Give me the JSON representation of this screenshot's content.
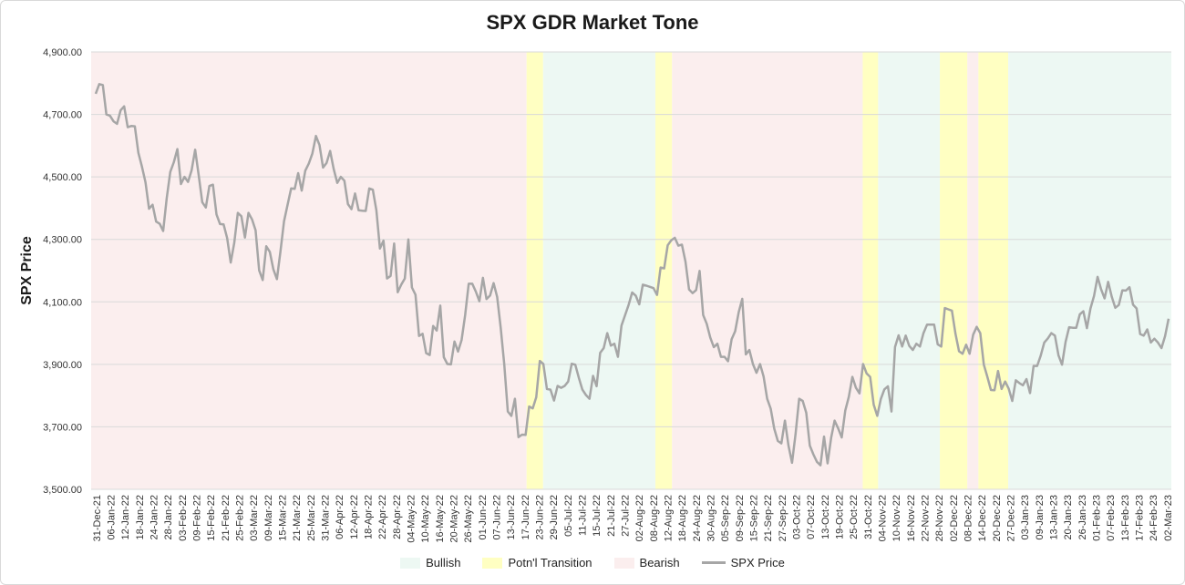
{
  "chart_data": {
    "type": "line",
    "title": "SPX GDR Market Tone",
    "ylabel": "SPX Price",
    "xlabel": "",
    "ylim": [
      3500,
      4900
    ],
    "yticks": [
      "3,500.00",
      "3,700.00",
      "3,900.00",
      "4,100.00",
      "4,300.00",
      "4,500.00",
      "4,700.00",
      "4,900.00"
    ],
    "ytick_values": [
      3500,
      3700,
      3900,
      4100,
      4300,
      4500,
      4700,
      4900
    ],
    "xticks": [
      "31-Dec-21",
      "06-Jan-22",
      "12-Jan-22",
      "18-Jan-22",
      "24-Jan-22",
      "28-Jan-22",
      "03-Feb-22",
      "09-Feb-22",
      "15-Feb-22",
      "21-Feb-22",
      "25-Feb-22",
      "03-Mar-22",
      "09-Mar-22",
      "15-Mar-22",
      "21-Mar-22",
      "25-Mar-22",
      "31-Mar-22",
      "06-Apr-22",
      "12-Apr-22",
      "18-Apr-22",
      "22-Apr-22",
      "28-Apr-22",
      "04-May-22",
      "10-May-22",
      "16-May-22",
      "20-May-22",
      "26-May-22",
      "01-Jun-22",
      "07-Jun-22",
      "13-Jun-22",
      "17-Jun-22",
      "23-Jun-22",
      "29-Jun-22",
      "05-Jul-22",
      "11-Jul-22",
      "15-Jul-22",
      "21-Jul-22",
      "27-Jul-22",
      "02-Aug-22",
      "08-Aug-22",
      "12-Aug-22",
      "18-Aug-22",
      "24-Aug-22",
      "30-Aug-22",
      "05-Sep-22",
      "09-Sep-22",
      "15-Sep-22",
      "21-Sep-22",
      "27-Sep-22",
      "03-Oct-22",
      "07-Oct-22",
      "13-Oct-22",
      "19-Oct-22",
      "25-Oct-22",
      "31-Oct-22",
      "04-Nov-22",
      "10-Nov-22",
      "16-Nov-22",
      "22-Nov-22",
      "28-Nov-22",
      "02-Dec-22",
      "08-Dec-22",
      "14-Dec-22",
      "20-Dec-22",
      "27-Dec-22",
      "03-Jan-23",
      "09-Jan-23",
      "13-Jan-23",
      "20-Jan-23",
      "26-Jan-23",
      "01-Feb-23",
      "07-Feb-23",
      "13-Feb-23",
      "17-Feb-23",
      "24-Feb-23",
      "02-Mar-23"
    ],
    "series": [
      {
        "name": "SPX Price",
        "color": "#a6a6a6",
        "values": [
          4766,
          4797,
          4794,
          4700,
          4696,
          4678,
          4670,
          4713,
          4726,
          4659,
          4663,
          4662,
          4577,
          4533,
          4483,
          4398,
          4411,
          4357,
          4350,
          4327,
          4432,
          4516,
          4547,
          4589,
          4477,
          4500,
          4484,
          4521,
          4587,
          4505,
          4419,
          4402,
          4471,
          4475,
          4380,
          4349,
          4348,
          4304,
          4226,
          4289,
          4385,
          4374,
          4306,
          4385,
          4364,
          4329,
          4201,
          4170,
          4278,
          4260,
          4204,
          4173,
          4262,
          4358,
          4411,
          4463,
          4462,
          4512,
          4456,
          4520,
          4543,
          4575,
          4631,
          4602,
          4530,
          4545,
          4583,
          4525,
          4481,
          4500,
          4488,
          4413,
          4397,
          4447,
          4393,
          4392,
          4391,
          4463,
          4459,
          4393,
          4271,
          4296,
          4175,
          4183,
          4287,
          4131,
          4155,
          4175,
          4300,
          4146,
          4123,
          3991,
          3998,
          3936,
          3930,
          4023,
          4008,
          4088,
          3923,
          3901,
          3900,
          3973,
          3941,
          3978,
          4058,
          4158,
          4158,
          4133,
          4102,
          4177,
          4109,
          4120,
          4160,
          4116,
          4017,
          3900,
          3749,
          3735,
          3790,
          3667,
          3675,
          3674,
          3765,
          3759,
          3795,
          3911,
          3901,
          3821,
          3819,
          3784,
          3831,
          3825,
          3831,
          3845,
          3902,
          3899,
          3857,
          3819,
          3802,
          3790,
          3863,
          3830,
          3937,
          3952,
          4000,
          3960,
          3966,
          3924,
          4024,
          4057,
          4090,
          4130,
          4120,
          4092,
          4155,
          4152,
          4148,
          4144,
          4122,
          4210,
          4207,
          4281,
          4297,
          4305,
          4280,
          4283,
          4229,
          4140,
          4128,
          4138,
          4199,
          4058,
          4030,
          3986,
          3955,
          3966,
          3924,
          3924,
          3910,
          3980,
          4006,
          4067,
          4110,
          3932,
          3946,
          3901,
          3873,
          3901,
          3861,
          3790,
          3758,
          3694,
          3655,
          3647,
          3720,
          3640,
          3585,
          3678,
          3790,
          3783,
          3745,
          3640,
          3612,
          3588,
          3577,
          3669,
          3583,
          3665,
          3720,
          3695,
          3666,
          3752,
          3796,
          3860,
          3825,
          3807,
          3901,
          3871,
          3860,
          3771,
          3735,
          3789,
          3820,
          3830,
          3749,
          3956,
          3993,
          3957,
          3992,
          3959,
          3946,
          3966,
          3957,
          4000,
          4027,
          4027,
          4027,
          3964,
          3957,
          4080,
          4076,
          4072,
          3998,
          3942,
          3934,
          3963,
          3934,
          3995,
          4020,
          4000,
          3899,
          3860,
          3818,
          3817,
          3879,
          3821,
          3845,
          3822,
          3783,
          3849,
          3840,
          3833,
          3853,
          3808,
          3895,
          3895,
          3928,
          3970,
          3983,
          4000,
          3992,
          3929,
          3899,
          3972,
          4019,
          4017,
          4017,
          4060,
          4070,
          4016,
          4079,
          4119,
          4180,
          4140,
          4111,
          4164,
          4117,
          4081,
          4090,
          4137,
          4136,
          4147,
          4091,
          4079,
          3997,
          3992,
          4012,
          3970,
          3982,
          3970,
          3952,
          3990,
          4046
        ]
      }
    ],
    "regions": [
      {
        "tone": "Bearish",
        "from": 0.0,
        "to": 0.4031
      },
      {
        "tone": "Potn'l Transition",
        "from": 0.4031,
        "to": 0.4184
      },
      {
        "tone": "Bullish",
        "from": 0.4184,
        "to": 0.5224
      },
      {
        "tone": "Potn'l Transition",
        "from": 0.5224,
        "to": 0.5378
      },
      {
        "tone": "Bearish",
        "from": 0.5378,
        "to": 0.7143
      },
      {
        "tone": "Potn'l Transition",
        "from": 0.7143,
        "to": 0.7286
      },
      {
        "tone": "Bullish",
        "from": 0.7286,
        "to": 0.7857
      },
      {
        "tone": "Potn'l Transition",
        "from": 0.7857,
        "to": 0.8112
      },
      {
        "tone": "Bearish",
        "from": 0.8112,
        "to": 0.8214
      },
      {
        "tone": "Potn'l Transition",
        "from": 0.8214,
        "to": 0.849
      },
      {
        "tone": "Bullish",
        "from": 0.849,
        "to": 1.0
      }
    ],
    "colors": {
      "Bullish": "#edf8f3",
      "Potn'l Transition": "#ffffc2",
      "Bearish": "#fbeeee",
      "line": "#a6a6a6",
      "grid": "#d9d9d9"
    },
    "grid": true,
    "legend_position": "bottom",
    "legend": [
      "Bullish",
      "Potn'l Transition",
      "Bearish",
      "SPX Price"
    ]
  }
}
